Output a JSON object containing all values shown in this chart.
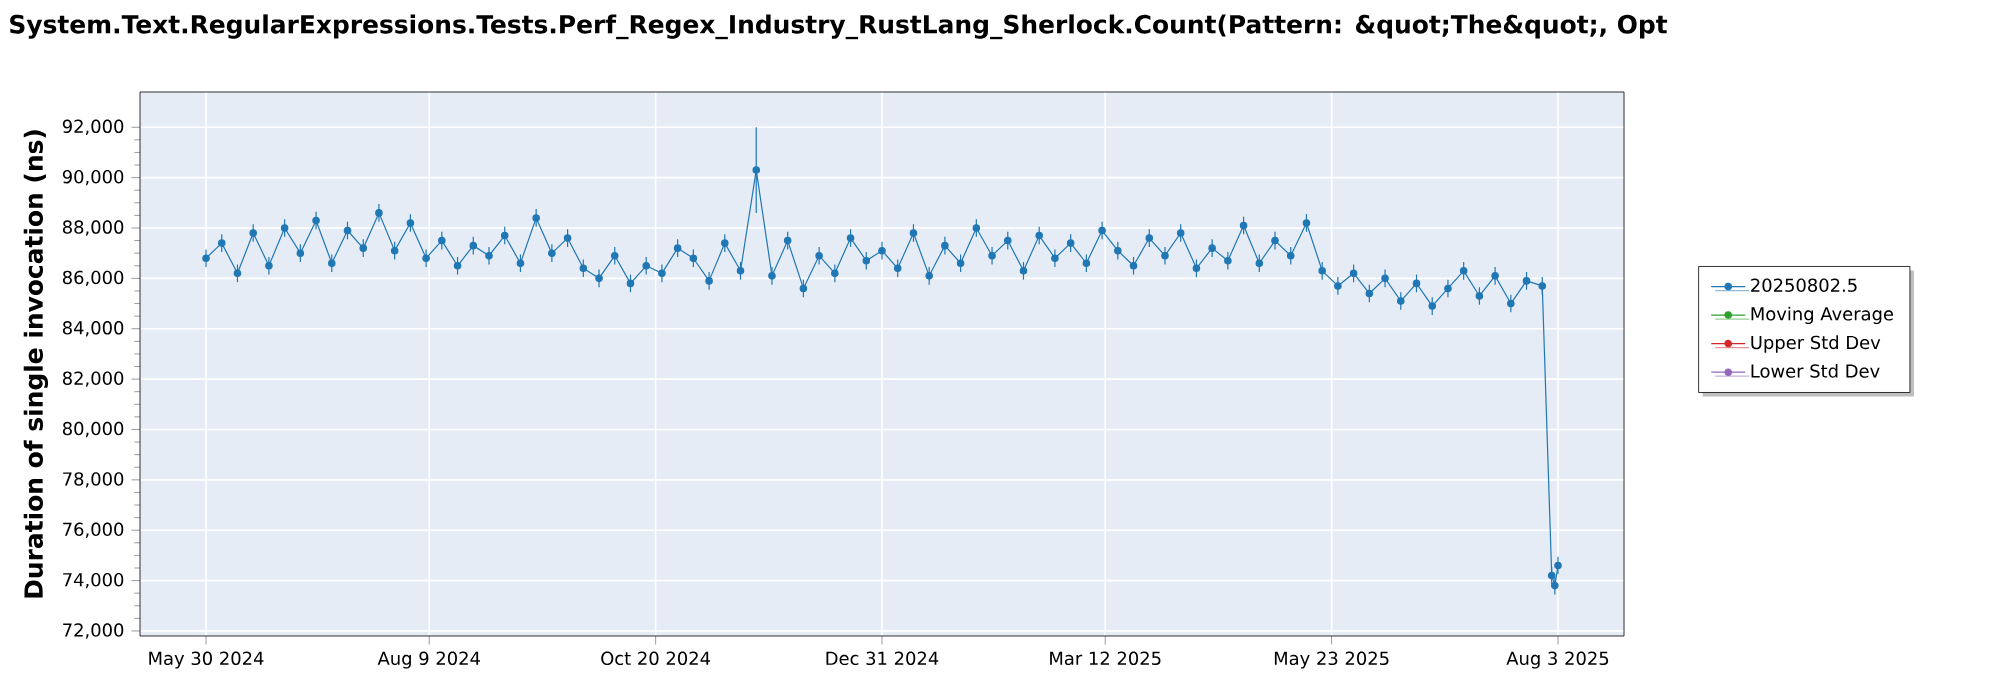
{
  "chart_data": {
    "type": "line",
    "title": "System.Text.RegularExpressions.Tests.Perf_Regex_Industry_RustLang_Sherlock.Count(Pattern: &quot;The&quot;, Opt",
    "ylabel": "Duration of single invocation (ns)",
    "x": [
      "2024-05-30",
      "2024-06-04",
      "2024-06-09",
      "2024-06-14",
      "2024-06-19",
      "2024-06-24",
      "2024-06-29",
      "2024-07-04",
      "2024-07-09",
      "2024-07-14",
      "2024-07-19",
      "2024-07-24",
      "2024-07-29",
      "2024-08-03",
      "2024-08-08",
      "2024-08-13",
      "2024-08-18",
      "2024-08-23",
      "2024-08-28",
      "2024-09-02",
      "2024-09-07",
      "2024-09-12",
      "2024-09-17",
      "2024-09-22",
      "2024-09-27",
      "2024-10-02",
      "2024-10-07",
      "2024-10-12",
      "2024-10-17",
      "2024-10-22",
      "2024-10-27",
      "2024-11-01",
      "2024-11-06",
      "2024-11-11",
      "2024-11-16",
      "2024-11-21",
      "2024-11-26",
      "2024-12-01",
      "2024-12-06",
      "2024-12-11",
      "2024-12-16",
      "2024-12-21",
      "2024-12-26",
      "2024-12-31",
      "2025-01-05",
      "2025-01-10",
      "2025-01-15",
      "2025-01-20",
      "2025-01-25",
      "2025-01-30",
      "2025-02-04",
      "2025-02-09",
      "2025-02-14",
      "2025-02-19",
      "2025-02-24",
      "2025-03-01",
      "2025-03-06",
      "2025-03-11",
      "2025-03-16",
      "2025-03-21",
      "2025-03-26",
      "2025-03-31",
      "2025-04-05",
      "2025-04-10",
      "2025-04-15",
      "2025-04-20",
      "2025-04-25",
      "2025-04-30",
      "2025-05-05",
      "2025-05-10",
      "2025-05-15",
      "2025-05-20",
      "2025-05-25",
      "2025-05-30",
      "2025-06-04",
      "2025-06-09",
      "2025-06-14",
      "2025-06-19",
      "2025-06-24",
      "2025-06-29",
      "2025-07-04",
      "2025-07-09",
      "2025-07-14",
      "2025-07-19",
      "2025-07-24",
      "2025-07-29",
      "2025-08-01",
      "2025-08-02",
      "2025-08-03"
    ],
    "series": [
      {
        "name": "20250802.5",
        "color": "#1f77b4",
        "values": [
          86800,
          87400,
          86200,
          87800,
          86500,
          88000,
          87000,
          88300,
          86600,
          87900,
          87200,
          88600,
          87100,
          88200,
          86800,
          87500,
          86500,
          87300,
          86900,
          87700,
          86600,
          88400,
          87000,
          87600,
          86400,
          86000,
          86900,
          85800,
          86500,
          86200,
          87200,
          86800,
          85900,
          87400,
          86300,
          90300,
          86100,
          87500,
          85600,
          86900,
          86200,
          87600,
          86700,
          87100,
          86400,
          87800,
          86100,
          87300,
          86600,
          88000,
          86900,
          87500,
          86300,
          87700,
          86800,
          87400,
          86600,
          87900,
          87100,
          86500,
          87600,
          86900,
          87800,
          86400,
          87200,
          86700,
          88100,
          86600,
          87500,
          86900,
          88200,
          86300,
          85700,
          86200,
          85400,
          86000,
          85100,
          85800,
          84900,
          85600,
          86300,
          85300,
          86100,
          85000,
          85900,
          85700,
          74200,
          73800,
          74600
        ],
        "errors": [
          350,
          350,
          350,
          350,
          350,
          350,
          350,
          350,
          350,
          350,
          350,
          350,
          350,
          350,
          350,
          350,
          350,
          350,
          350,
          350,
          350,
          350,
          350,
          350,
          350,
          350,
          350,
          350,
          350,
          350,
          350,
          350,
          350,
          350,
          350,
          1700,
          350,
          350,
          350,
          350,
          350,
          350,
          350,
          350,
          350,
          350,
          350,
          350,
          350,
          350,
          350,
          350,
          350,
          350,
          350,
          350,
          350,
          350,
          350,
          350,
          350,
          350,
          350,
          350,
          350,
          350,
          350,
          350,
          350,
          350,
          350,
          350,
          350,
          350,
          350,
          350,
          350,
          350,
          350,
          350,
          350,
          350,
          350,
          350,
          350,
          350,
          350,
          350,
          350
        ]
      },
      {
        "name": "Moving Average",
        "color": "#2ca02c",
        "values": [
          null,
          null,
          null,
          null,
          null,
          null,
          null,
          null,
          null,
          null,
          null,
          null,
          null,
          null,
          null,
          null,
          null,
          null,
          null,
          null,
          null,
          null,
          null,
          null,
          null,
          null,
          null,
          null,
          null,
          null,
          null,
          null,
          null,
          null,
          null,
          null,
          null,
          null,
          null,
          null,
          null,
          null,
          null,
          null,
          null,
          null,
          null,
          null,
          null,
          null,
          null,
          null,
          null,
          null,
          null,
          null,
          null,
          null,
          null,
          null,
          null,
          null,
          null,
          null,
          null,
          null,
          null,
          null,
          null,
          null,
          null,
          null,
          null,
          null,
          null,
          null,
          null,
          null,
          null,
          null,
          null,
          null,
          null,
          null,
          null,
          null,
          null,
          null,
          null
        ]
      },
      {
        "name": "Upper Std Dev",
        "color": "#d62728",
        "values": [
          null,
          null,
          null,
          null,
          null,
          null,
          null,
          null,
          null,
          null,
          null,
          null,
          null,
          null,
          null,
          null,
          null,
          null,
          null,
          null,
          null,
          null,
          null,
          null,
          null,
          null,
          null,
          null,
          null,
          null,
          null,
          null,
          null,
          null,
          null,
          null,
          null,
          null,
          null,
          null,
          null,
          null,
          null,
          null,
          null,
          null,
          null,
          null,
          null,
          null,
          null,
          null,
          null,
          null,
          null,
          null,
          null,
          null,
          null,
          null,
          null,
          null,
          null,
          null,
          null,
          null,
          null,
          null,
          null,
          null,
          null,
          null,
          null,
          null,
          null,
          null,
          null,
          null,
          null,
          null,
          null,
          null,
          null,
          null,
          null,
          null,
          null,
          null,
          null
        ]
      },
      {
        "name": "Lower Std Dev",
        "color": "#9467bd",
        "values": [
          null,
          null,
          null,
          null,
          null,
          null,
          null,
          null,
          null,
          null,
          null,
          null,
          null,
          null,
          null,
          null,
          null,
          null,
          null,
          null,
          null,
          null,
          null,
          null,
          null,
          null,
          null,
          null,
          null,
          null,
          null,
          null,
          null,
          null,
          null,
          null,
          null,
          null,
          null,
          null,
          null,
          null,
          null,
          null,
          null,
          null,
          null,
          null,
          null,
          null,
          null,
          null,
          null,
          null,
          null,
          null,
          null,
          null,
          null,
          null,
          null,
          null,
          null,
          null,
          null,
          null,
          null,
          null,
          null,
          null,
          null,
          null,
          null,
          null,
          null,
          null,
          null,
          null,
          null,
          null,
          null,
          null,
          null,
          null,
          null,
          null,
          null,
          null,
          null
        ]
      }
    ],
    "xlim": [
      "2024-05-09",
      "2025-08-24"
    ],
    "xticks": [
      {
        "value": "2024-05-30",
        "label": "May 30 2024"
      },
      {
        "value": "2024-08-09",
        "label": "Aug 9 2024"
      },
      {
        "value": "2024-10-20",
        "label": "Oct 20 2024"
      },
      {
        "value": "2024-12-31",
        "label": "Dec 31 2024"
      },
      {
        "value": "2025-03-12",
        "label": "Mar 12 2025"
      },
      {
        "value": "2025-05-23",
        "label": "May 23 2025"
      },
      {
        "value": "2025-08-03",
        "label": "Aug 3 2025"
      }
    ],
    "ylim": [
      71800,
      93400
    ],
    "yticks": [
      {
        "value": 72000,
        "label": "72,000"
      },
      {
        "value": 74000,
        "label": "74,000"
      },
      {
        "value": 76000,
        "label": "76,000"
      },
      {
        "value": 78000,
        "label": "78,000"
      },
      {
        "value": 80000,
        "label": "80,000"
      },
      {
        "value": 82000,
        "label": "82,000"
      },
      {
        "value": 84000,
        "label": "84,000"
      },
      {
        "value": 86000,
        "label": "86,000"
      },
      {
        "value": 88000,
        "label": "88,000"
      },
      {
        "value": 90000,
        "label": "90,000"
      },
      {
        "value": 92000,
        "label": "92,000"
      }
    ],
    "grid": true,
    "legend": "right",
    "marker": "circle",
    "line_style": "solid"
  }
}
